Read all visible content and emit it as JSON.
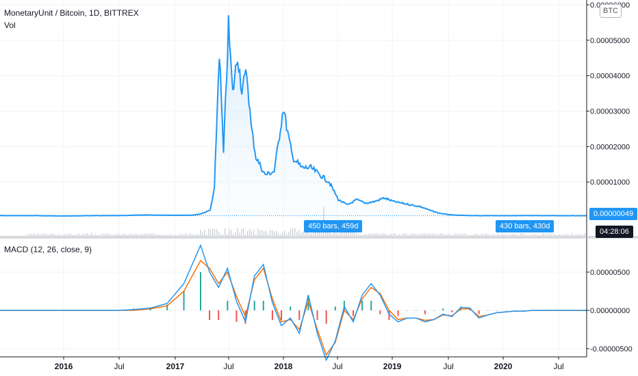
{
  "header": {
    "title": "MonetaryUnit / Bitcoin, 1D, BITTREX",
    "vol_label": "Vol",
    "currency_button": "BTC"
  },
  "macd": {
    "label": "MACD (12, 26, close, 9)"
  },
  "badges": {
    "last_price": "0.00000049",
    "countdown": "04:28:06",
    "left_range": "450 bars, 459d",
    "right_range": "430 bars, 430d"
  },
  "colors": {
    "price_line": "#2196f3",
    "area_fill": "#e3f2fd",
    "macd_line": "#2196f3",
    "signal_line": "#ff6d00",
    "hist_pos": "#26a69a",
    "hist_neg": "#ef5350",
    "grid": "#f0f3fa"
  },
  "chart_data": [
    {
      "type": "area",
      "title": "MonetaryUnit / Bitcoin, 1D, BITTREX",
      "x_ticks": [
        "2016",
        "Jul",
        "2017",
        "Jul",
        "2018",
        "Jul",
        "2019",
        "Jul",
        "2020",
        "Jul"
      ],
      "y_ticks": [
        "0.00006000",
        "0.00005000",
        "0.00004000",
        "0.00003000",
        "0.00002000",
        "0.00001000",
        "0.00000049"
      ],
      "ylim": [
        0,
        6e-05
      ],
      "series": [
        {
          "x": [
            "2015-04",
            "2015-07",
            "2015-10",
            "2016-01",
            "2016-04",
            "2016-07",
            "2016-10",
            "2017-01",
            "2017-03",
            "2017-04",
            "2017-05",
            "2017-05-15",
            "2017-06",
            "2017-06-15",
            "2017-07",
            "2017-07-15",
            "2017-08",
            "2017-08-15",
            "2017-09",
            "2017-09-15",
            "2017-10",
            "2017-11",
            "2017-12",
            "2018-01",
            "2018-01-15",
            "2018-02",
            "2018-03",
            "2018-04",
            "2018-05",
            "2018-06",
            "2018-07",
            "2018-08",
            "2018-09",
            "2018-10",
            "2018-11",
            "2018-12",
            "2019-01",
            "2019-02",
            "2019-03",
            "2019-04",
            "2019-05",
            "2019-06",
            "2019-07",
            "2019-08",
            "2019-10",
            "2020-01",
            "2020-04",
            "2020-07",
            "2020-09"
          ],
          "values": [
            6e-07,
            5e-07,
            5e-07,
            4e-07,
            5e-07,
            5e-07,
            7e-07,
            6e-07,
            6e-07,
            1e-06,
            2e-06,
            8e-06,
            4.7e-05,
            1.8e-05,
            5.4e-05,
            3.5e-05,
            4.6e-05,
            3.6e-05,
            4.1e-05,
            2.6e-05,
            1.7e-05,
            1.2e-05,
            1.3e-05,
            3.1e-05,
            2.4e-05,
            1.7e-05,
            1.4e-05,
            1.4e-05,
            1.2e-05,
            1e-05,
            5e-06,
            3.5e-06,
            5e-06,
            4e-06,
            4.5e-06,
            5.5e-06,
            4.5e-06,
            4e-06,
            3.5e-06,
            3e-06,
            2e-06,
            1.2e-06,
            8e-07,
            6e-07,
            5e-07,
            5e-07,
            5e-07,
            5e-07,
            4.9e-07
          ]
        }
      ]
    },
    {
      "type": "line",
      "title": "MACD (12, 26, close, 9)",
      "y_ticks": [
        "0.00000500",
        "0.00000000",
        "-0.00000500"
      ],
      "ylim": [
        -7.5e-06,
        9.5e-06
      ],
      "series": [
        {
          "values": [
            0,
            0,
            0,
            0,
            0,
            0,
            0,
            0,
            1e-07,
            3e-07,
            9e-07,
            3.5e-06,
            8.5e-06,
            5e-06,
            3e-06,
            5.5e-06,
            1.2e-06,
            -1.5e-06,
            4.5e-06,
            6e-06,
            1e-06,
            -2e-06,
            -1e-06,
            -3e-06,
            2e-06,
            -3e-06,
            -6.5e-06,
            -4e-06,
            5e-07,
            -1.5e-06,
            2e-06,
            3.5e-06,
            2e-06,
            -5e-07,
            -1.5e-06,
            -1e-06,
            -1e-06,
            -1.5e-06,
            -1.2e-06,
            -5e-07,
            -8e-07,
            4e-07,
            3e-07,
            -1e-06,
            -6e-07,
            -3e-07,
            -2e-07,
            -1e-07,
            -1e-07,
            0,
            0,
            0,
            0,
            0,
            0,
            0
          ]
        },
        {
          "values": [
            0,
            0,
            0,
            0,
            0,
            0,
            0,
            0,
            0,
            2e-07,
            6e-07,
            2.5e-06,
            6.5e-06,
            5.5e-06,
            3.5e-06,
            5e-06,
            1.8e-06,
            -8e-07,
            4e-06,
            5.5e-06,
            1.5e-06,
            -1.5e-06,
            -1.2e-06,
            -2.5e-06,
            1.2e-06,
            -2.5e-06,
            -5.8e-06,
            -4.2e-06,
            0,
            -1.2e-06,
            1.5e-06,
            3e-06,
            2.2e-06,
            0,
            -1.2e-06,
            -1e-06,
            -1e-06,
            -1.3e-06,
            -1.2e-06,
            -6e-07,
            -7e-07,
            2e-07,
            2e-07,
            -8e-07,
            -6e-07,
            -3e-07,
            -2e-07,
            -1e-07,
            -1e-07,
            0,
            0,
            0,
            0,
            0,
            0,
            0
          ]
        }
      ]
    }
  ]
}
